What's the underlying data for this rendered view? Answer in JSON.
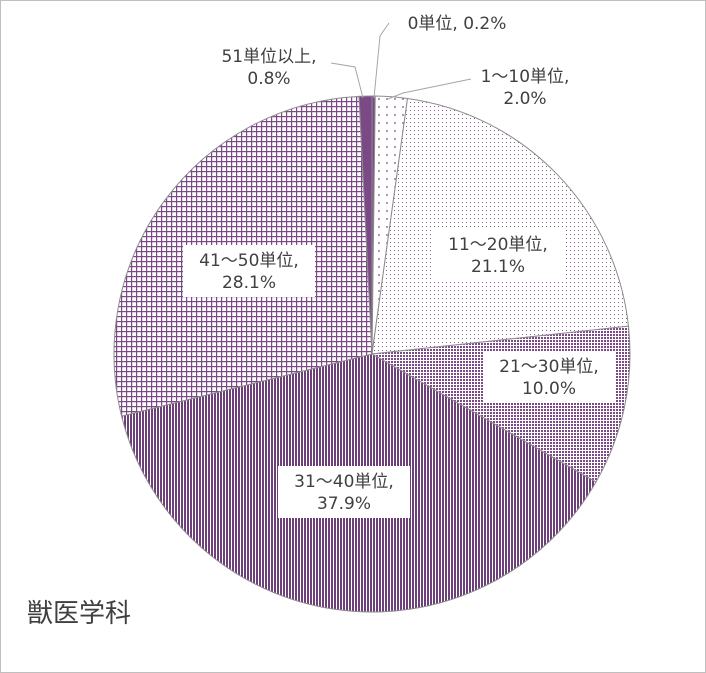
{
  "chart_data": {
    "type": "pie",
    "title": "獣医学科",
    "slices": [
      {
        "name": "0単位",
        "value": 0.2,
        "label": [
          "0単位, 0.2%"
        ]
      },
      {
        "name": "1～10単位",
        "value": 2.0,
        "label": [
          "1～10単位,",
          "2.0%"
        ]
      },
      {
        "name": "11～20単位",
        "value": 21.1,
        "label": [
          "11～20単位,",
          "21.1%"
        ]
      },
      {
        "name": "21～30単位",
        "value": 10.0,
        "label": [
          "21～30単位,",
          "10.0%"
        ]
      },
      {
        "name": "31～40単位",
        "value": 37.9,
        "label": [
          "31～40単位,",
          "37.9%"
        ]
      },
      {
        "name": "41～50単位",
        "value": 28.1,
        "label": [
          "41～50単位,",
          "28.1%"
        ]
      },
      {
        "name": "51単位以上",
        "value": 0.8,
        "label": [
          "51単位以上,",
          "0.8%"
        ]
      }
    ],
    "colors": {
      "accent": "#7b4a86",
      "dark": "#6a3c74",
      "light": "#c9b2cf",
      "outline": "#8c8c8c"
    }
  }
}
